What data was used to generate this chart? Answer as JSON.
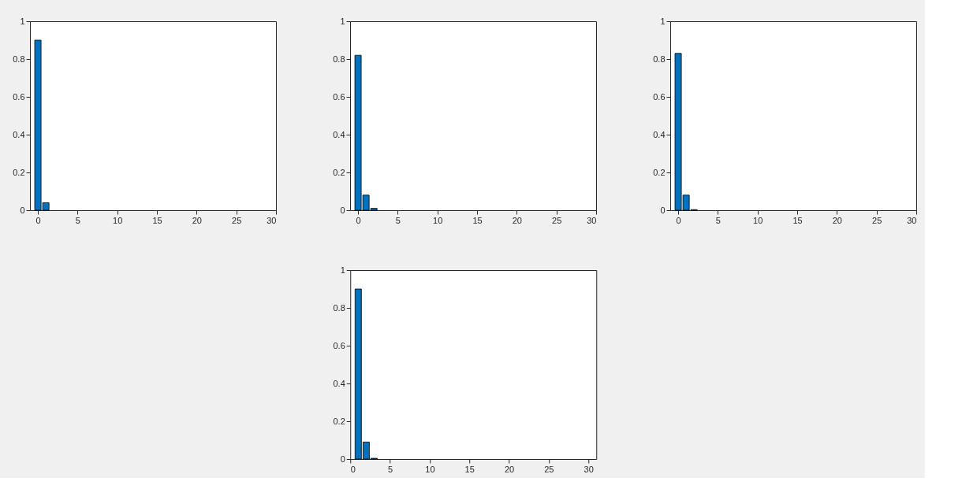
{
  "chart_data": [
    {
      "type": "bar",
      "x": [
        0,
        1
      ],
      "values": [
        0.9,
        0.04
      ],
      "color": "#0072bd",
      "xlim": [
        -1,
        30
      ],
      "xticks": [
        0,
        5,
        10,
        15,
        20,
        25,
        30
      ],
      "ylim": [
        0,
        1
      ],
      "yticks": [
        0,
        0.2,
        0.4,
        0.6,
        0.8,
        1
      ]
    },
    {
      "type": "bar",
      "x": [
        0,
        1,
        2
      ],
      "values": [
        0.82,
        0.08,
        0.01
      ],
      "color": "#0072bd",
      "xlim": [
        -1,
        30
      ],
      "xticks": [
        0,
        5,
        10,
        15,
        20,
        25,
        30
      ],
      "ylim": [
        0,
        1
      ],
      "yticks": [
        0,
        0.2,
        0.4,
        0.6,
        0.8,
        1
      ]
    },
    {
      "type": "bar",
      "x": [
        0,
        1,
        2
      ],
      "values": [
        0.83,
        0.08,
        0.003
      ],
      "color": "#0072bd",
      "xlim": [
        -1,
        30
      ],
      "xticks": [
        0,
        5,
        10,
        15,
        20,
        25,
        30
      ],
      "ylim": [
        0,
        1
      ],
      "yticks": [
        0,
        0.2,
        0.4,
        0.6,
        0.8,
        1
      ]
    },
    {
      "type": "bar",
      "x": [
        1,
        2,
        3
      ],
      "values": [
        0.9,
        0.09,
        0.004
      ],
      "color": "#0072bd",
      "xlim": [
        0,
        31
      ],
      "xticks": [
        0,
        5,
        10,
        15,
        20,
        25,
        30
      ],
      "ylim": [
        0,
        1
      ],
      "yticks": [
        0,
        0.2,
        0.4,
        0.6,
        0.8,
        1
      ]
    }
  ]
}
